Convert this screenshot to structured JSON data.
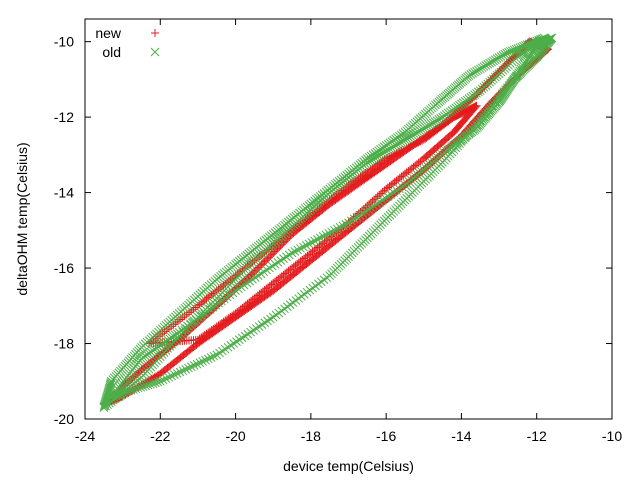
{
  "chart_data": {
    "type": "scatter",
    "title": "",
    "xlabel": "device temp(Celsius)",
    "ylabel": "deltaOHM temp(Celsius)",
    "xlim": [
      -24,
      -10
    ],
    "ylim": [
      -20,
      -9.4
    ],
    "xticks": [
      -24,
      -22,
      -20,
      -18,
      -16,
      -14,
      -12,
      -10
    ],
    "yticks": [
      -20,
      -18,
      -16,
      -14,
      -12,
      -10
    ],
    "grid": false,
    "legend_position": "top-left",
    "series": [
      {
        "name": "new",
        "marker": "plus",
        "color": "#e41a1c",
        "loops": [
          {
            "points": [
              [
                -23.5,
                -19.6
              ],
              [
                -22.5,
                -18.7
              ],
              [
                -21.5,
                -17.9
              ],
              [
                -20.5,
                -17.0
              ],
              [
                -19.5,
                -16.1
              ],
              [
                -18.5,
                -15.1
              ],
              [
                -17.5,
                -14.3
              ],
              [
                -16.5,
                -13.6
              ],
              [
                -15.5,
                -12.9
              ],
              [
                -14.5,
                -12.2
              ],
              [
                -13.6,
                -11.4
              ],
              [
                -12.8,
                -10.6
              ],
              [
                -12.2,
                -10.0
              ],
              [
                -11.7,
                -10.2
              ],
              [
                -12.4,
                -10.8
              ],
              [
                -13.2,
                -11.6
              ],
              [
                -14.0,
                -12.5
              ],
              [
                -15.0,
                -13.4
              ],
              [
                -16.0,
                -14.2
              ],
              [
                -17.0,
                -15.0
              ],
              [
                -18.0,
                -15.8
              ],
              [
                -19.0,
                -16.6
              ],
              [
                -20.0,
                -17.3
              ],
              [
                -21.0,
                -18.0
              ],
              [
                -22.0,
                -18.8
              ],
              [
                -23.0,
                -19.4
              ],
              [
                -23.5,
                -19.6
              ]
            ],
            "density": 26
          },
          {
            "points": [
              [
                -22.3,
                -18.0
              ],
              [
                -21.0,
                -17.0
              ],
              [
                -20.0,
                -16.2
              ],
              [
                -19.0,
                -15.4
              ],
              [
                -18.0,
                -14.6
              ],
              [
                -17.0,
                -13.8
              ],
              [
                -16.0,
                -13.1
              ],
              [
                -15.0,
                -12.6
              ],
              [
                -14.2,
                -12.0
              ],
              [
                -13.6,
                -11.7
              ],
              [
                -14.2,
                -12.4
              ],
              [
                -15.0,
                -13.1
              ],
              [
                -16.0,
                -13.9
              ],
              [
                -17.0,
                -14.8
              ],
              [
                -18.0,
                -15.6
              ],
              [
                -19.0,
                -16.4
              ],
              [
                -20.0,
                -17.2
              ],
              [
                -21.0,
                -17.9
              ],
              [
                -22.3,
                -18.0
              ]
            ],
            "density": 22
          }
        ]
      },
      {
        "name": "old",
        "marker": "cross",
        "color": "#4daf4a",
        "loops": [
          {
            "points": [
              [
                -23.5,
                -19.7
              ],
              [
                -22.5,
                -18.9
              ],
              [
                -21.5,
                -17.8
              ],
              [
                -20.5,
                -16.8
              ],
              [
                -19.5,
                -15.8
              ],
              [
                -18.5,
                -14.9
              ],
              [
                -17.5,
                -14.0
              ],
              [
                -16.5,
                -13.2
              ],
              [
                -15.5,
                -12.6
              ],
              [
                -14.5,
                -12.0
              ],
              [
                -13.5,
                -11.3
              ],
              [
                -12.5,
                -10.4
              ],
              [
                -11.8,
                -9.9
              ],
              [
                -12.8,
                -10.3
              ],
              [
                -13.8,
                -10.9
              ],
              [
                -14.6,
                -11.6
              ],
              [
                -15.5,
                -12.4
              ],
              [
                -16.5,
                -13.1
              ],
              [
                -17.5,
                -13.9
              ],
              [
                -18.5,
                -14.7
              ],
              [
                -19.5,
                -15.5
              ],
              [
                -20.5,
                -16.3
              ],
              [
                -21.5,
                -17.2
              ],
              [
                -22.5,
                -18.1
              ],
              [
                -23.3,
                -19.0
              ],
              [
                -23.5,
                -19.7
              ]
            ],
            "density": 20
          },
          {
            "points": [
              [
                -23.3,
                -19.4
              ],
              [
                -22.0,
                -19.0
              ],
              [
                -20.5,
                -18.3
              ],
              [
                -19.0,
                -17.3
              ],
              [
                -17.5,
                -16.2
              ],
              [
                -16.5,
                -15.2
              ],
              [
                -15.5,
                -14.2
              ],
              [
                -14.5,
                -13.2
              ],
              [
                -13.5,
                -12.1
              ],
              [
                -12.6,
                -11.0
              ],
              [
                -12.0,
                -10.1
              ],
              [
                -11.6,
                -9.9
              ],
              [
                -12.0,
                -10.4
              ],
              [
                -12.6,
                -11.0
              ],
              [
                -13.0,
                -11.6
              ],
              [
                -13.6,
                -12.3
              ],
              [
                -14.4,
                -12.9
              ],
              [
                -15.5,
                -13.8
              ],
              [
                -17.0,
                -14.8
              ],
              [
                -18.5,
                -15.6
              ],
              [
                -20.0,
                -16.6
              ],
              [
                -21.5,
                -17.7
              ],
              [
                -22.5,
                -18.4
              ],
              [
                -23.3,
                -19.4
              ]
            ],
            "density": 20
          }
        ]
      }
    ]
  }
}
